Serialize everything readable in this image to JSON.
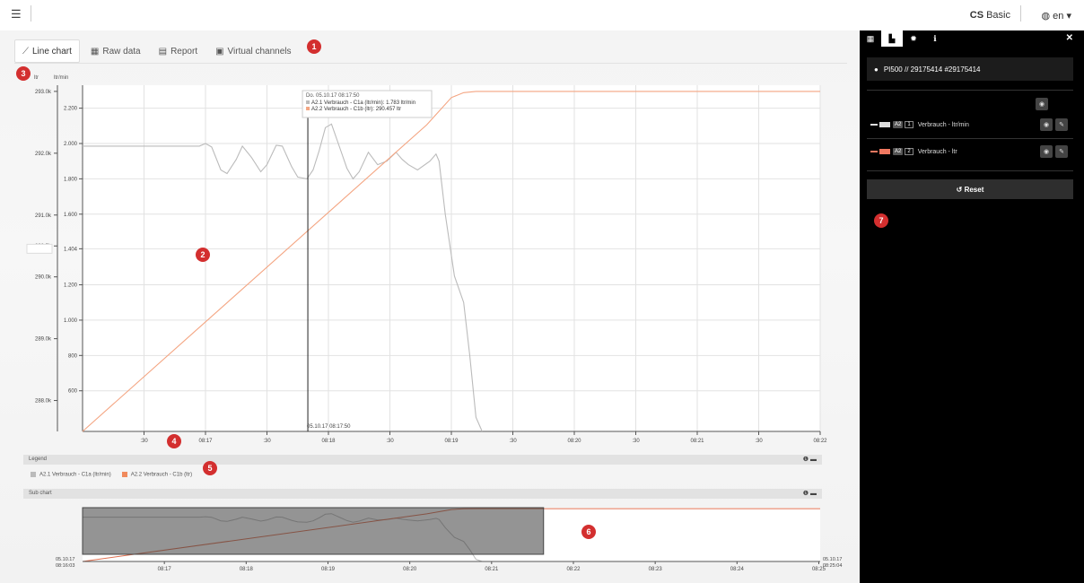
{
  "header": {
    "menu_icon": "hamburger-icon",
    "brand_bold": "CS",
    "brand_rest": "Basic",
    "lang": "en"
  },
  "tabs": [
    {
      "label": "Line chart",
      "icon": "line-chart-icon"
    },
    {
      "label": "Raw data",
      "icon": "table-icon"
    },
    {
      "label": "Report",
      "icon": "report-icon"
    },
    {
      "label": "Virtual channels",
      "icon": "calculator-icon"
    }
  ],
  "badges": [
    "1",
    "2",
    "3",
    "4",
    "5",
    "6",
    "7"
  ],
  "chart_data": {
    "type": "line",
    "left_axis_unit": "ltr",
    "right_axis_unit": "ltr/min",
    "ylim_left": [
      287500,
      293100
    ],
    "ylim_right": [
      370,
      2330
    ],
    "left_ticks": [
      {
        "v": 293000,
        "label": "293.0k"
      },
      {
        "v": 292000,
        "label": "292.0k"
      },
      {
        "v": 291000,
        "label": "291.0k"
      },
      {
        "v": 290500,
        "label": "290.5k"
      },
      {
        "v": 290000,
        "label": "290.0k"
      },
      {
        "v": 289000,
        "label": "289.0k"
      },
      {
        "v": 288000,
        "label": "288.0k"
      }
    ],
    "right_ticks": [
      {
        "v": 2200,
        "label": "2.200"
      },
      {
        "v": 2000,
        "label": "2.000"
      },
      {
        "v": 1800,
        "label": "1.800"
      },
      {
        "v": 1600,
        "label": "1.600"
      },
      {
        "v": 1404,
        "label": "1.404"
      },
      {
        "v": 1200,
        "label": "1.200"
      },
      {
        "v": 1000,
        "label": "1.000"
      },
      {
        "v": 800,
        "label": "800"
      },
      {
        "v": 600,
        "label": "600"
      }
    ],
    "x_ticks": [
      ":30",
      "08:17",
      ":30",
      "08:18",
      ":30",
      "08:19",
      ":30",
      "08:20",
      ":30",
      "08:21",
      ":30",
      "08:22"
    ],
    "series": [
      {
        "name": "A2.1 Verbrauch - C1a (ltr/min)",
        "color": "#bbbbbb",
        "axis": "right",
        "points": [
          [
            0.0,
            1985
          ],
          [
            2.0,
            1985
          ],
          [
            3.8,
            1985
          ],
          [
            4.0,
            2000
          ],
          [
            4.2,
            1980
          ],
          [
            4.5,
            1850
          ],
          [
            4.7,
            1830
          ],
          [
            5.0,
            1910
          ],
          [
            5.2,
            1985
          ],
          [
            5.5,
            1920
          ],
          [
            5.8,
            1840
          ],
          [
            6.0,
            1880
          ],
          [
            6.3,
            1990
          ],
          [
            6.5,
            1985
          ],
          [
            6.8,
            1870
          ],
          [
            7.0,
            1810
          ],
          [
            7.3,
            1800
          ],
          [
            7.5,
            1850
          ],
          [
            7.7,
            1960
          ],
          [
            7.9,
            2090
          ],
          [
            8.1,
            2110
          ],
          [
            8.3,
            2010
          ],
          [
            8.6,
            1860
          ],
          [
            8.8,
            1800
          ],
          [
            9.0,
            1840
          ],
          [
            9.3,
            1950
          ],
          [
            9.6,
            1880
          ],
          [
            9.9,
            1900
          ],
          [
            10.2,
            1950
          ],
          [
            10.4,
            1910
          ],
          [
            10.6,
            1880
          ],
          [
            10.9,
            1850
          ],
          [
            11.3,
            1900
          ],
          [
            11.5,
            1940
          ],
          [
            11.6,
            1900
          ],
          [
            11.8,
            1600
          ],
          [
            12.1,
            1250
          ],
          [
            12.4,
            1100
          ],
          [
            12.6,
            800
          ],
          [
            12.8,
            450
          ],
          [
            13.0,
            360
          ]
        ]
      },
      {
        "name": "A2.2 Verbrauch - C1b (ltr)",
        "color": "#f4a582",
        "axis": "left",
        "points": [
          [
            0.0,
            287150
          ],
          [
            11.2,
            292460
          ],
          [
            12.0,
            292900
          ],
          [
            12.4,
            292980
          ],
          [
            12.8,
            293000
          ],
          [
            15.0,
            293000
          ],
          [
            24.0,
            293000
          ]
        ]
      }
    ],
    "tooltip": {
      "title": "Do. 05.10.17 08:17:50",
      "lines": [
        "A2.1 Verbrauch - C1a (ltr/min): 1.783 ltr/min",
        "A2.2 Verbrauch - C1b (ltr): 290.457 ltr"
      ]
    },
    "cursor_label": "05.10.17 08:17:50",
    "cursor_t": 7.33
  },
  "legend": {
    "title": "Legend",
    "items": [
      {
        "label": "A2.1 Verbrauch - C1a (ltr/min)",
        "color": "#bbbbbb"
      },
      {
        "label": "A2.2 Verbrauch - C1b (ltr)",
        "color": "#f08a5d"
      }
    ]
  },
  "subchart": {
    "title": "Sub chart",
    "start_date": "05.10.17",
    "start_time": "08:16:03",
    "end_date": "05.10.17",
    "end_time": "08:25:04",
    "ticks": [
      "08:17",
      "08:18",
      "08:19",
      "08:20",
      "08:21",
      "08:22",
      "08:23",
      "08:24",
      "08:25"
    ]
  },
  "panel": {
    "device": "PI500 // 29175414 #29175414",
    "channels": [
      {
        "tag": "A2",
        "num": "1",
        "label": "Verbrauch - ltr/min",
        "color": "#dddddd"
      },
      {
        "tag": "A2",
        "num": "2",
        "label": "Verbrauch - ltr",
        "color": "#f07860"
      }
    ],
    "reset": "Reset"
  },
  "colors": {
    "accent": "#d32f2f",
    "panel_bg": "#000000"
  }
}
